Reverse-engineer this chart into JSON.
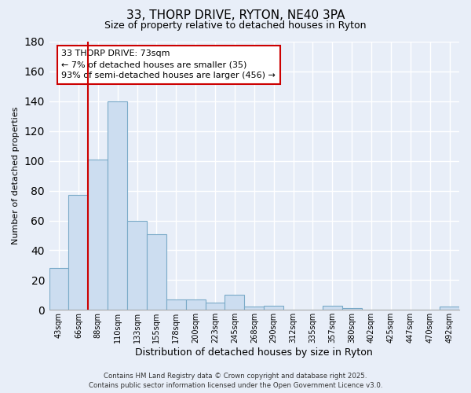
{
  "title": "33, THORP DRIVE, RYTON, NE40 3PA",
  "subtitle": "Size of property relative to detached houses in Ryton",
  "xlabel": "Distribution of detached houses by size in Ryton",
  "ylabel": "Number of detached properties",
  "bin_labels": [
    "43sqm",
    "66sqm",
    "88sqm",
    "110sqm",
    "133sqm",
    "155sqm",
    "178sqm",
    "200sqm",
    "223sqm",
    "245sqm",
    "268sqm",
    "290sqm",
    "312sqm",
    "335sqm",
    "357sqm",
    "380sqm",
    "402sqm",
    "425sqm",
    "447sqm",
    "470sqm",
    "492sqm"
  ],
  "bin_values": [
    28,
    77,
    101,
    140,
    60,
    51,
    7,
    7,
    5,
    10,
    2,
    3,
    0,
    0,
    3,
    1,
    0,
    0,
    0,
    0,
    2
  ],
  "bar_color": "#ccddf0",
  "bar_edge_color": "#7aaac8",
  "vline_x_index": 1.5,
  "vline_color": "#cc0000",
  "ylim": [
    0,
    180
  ],
  "yticks": [
    0,
    20,
    40,
    60,
    80,
    100,
    120,
    140,
    160,
    180
  ],
  "annotation_title": "33 THORP DRIVE: 73sqm",
  "annotation_line1": "← 7% of detached houses are smaller (35)",
  "annotation_line2": "93% of semi-detached houses are larger (456) →",
  "footer1": "Contains HM Land Registry data © Crown copyright and database right 2025.",
  "footer2": "Contains public sector information licensed under the Open Government Licence v3.0.",
  "background_color": "#e8eef8",
  "grid_color": "#ffffff",
  "fig_width": 6.0,
  "fig_height": 5.0
}
